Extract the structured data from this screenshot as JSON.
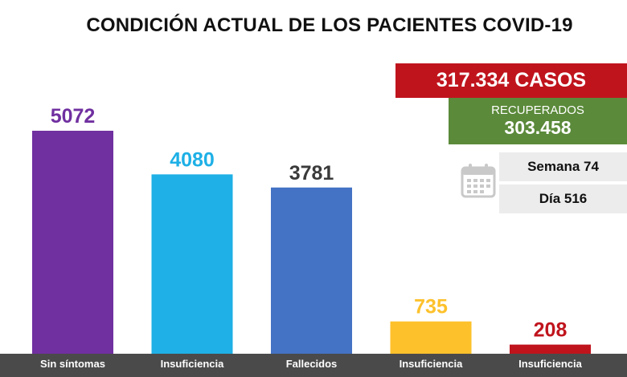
{
  "title": "CONDICIÓN ACTUAL DE LOS PACIENTES COVID-19",
  "info": {
    "cases": "317.334 CASOS",
    "recovered_label": "RECUPERADOS",
    "recovered_value": "303.458",
    "week": "Semana 74",
    "day": "Día 516"
  },
  "icons": {
    "calendar": "calendar-icon"
  },
  "chart_data": {
    "type": "bar",
    "categories": [
      "Sin síntomas",
      "Insuficiencia",
      "Fallecidos",
      "Insuficiencia",
      "Insuficiencia"
    ],
    "values": [
      5072,
      4080,
      3781,
      735,
      208
    ],
    "colors": [
      "#7030a0",
      "#1eb0e6",
      "#4472c4",
      "#fdc12b",
      "#c0141d"
    ],
    "label_colors": [
      "#7030a0",
      "#1eb0e6",
      "#3a3a3a",
      "#fdc12b",
      "#c0141d"
    ],
    "ylim": [
      0,
      5072
    ],
    "grid": false
  }
}
